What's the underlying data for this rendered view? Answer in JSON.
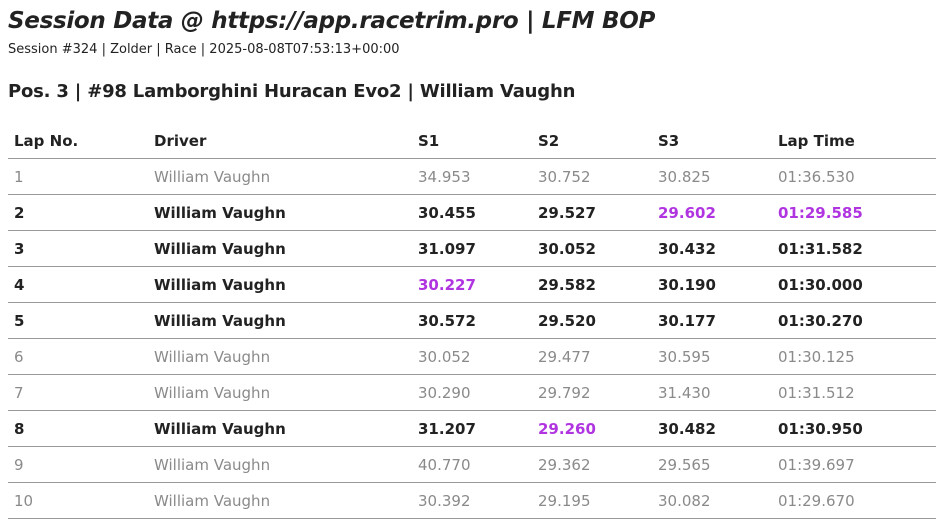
{
  "header": {
    "title": "Session Data @ https://app.racetrim.pro | LFM BOP",
    "subtitle": "Session #324 | Zolder | Race | 2025-08-08T07:53:13+00:00",
    "entry": "Pos. 3 | #98 Lamborghini Huracan Evo2 | William Vaughn"
  },
  "colors": {
    "best": "#b035e0",
    "invalid": "#8a8a8a",
    "valid": "#222222"
  },
  "table": {
    "columns": [
      "Lap No.",
      "Driver",
      "S1",
      "S2",
      "S3",
      "Lap Time"
    ],
    "rows": [
      {
        "lap": "1",
        "driver": "William Vaughn",
        "s1": "34.953",
        "s2": "30.752",
        "s3": "30.825",
        "time": "01:36.530",
        "valid": false,
        "best": []
      },
      {
        "lap": "2",
        "driver": "William Vaughn",
        "s1": "30.455",
        "s2": "29.527",
        "s3": "29.602",
        "time": "01:29.585",
        "valid": true,
        "best": [
          "s3",
          "time"
        ]
      },
      {
        "lap": "3",
        "driver": "William Vaughn",
        "s1": "31.097",
        "s2": "30.052",
        "s3": "30.432",
        "time": "01:31.582",
        "valid": true,
        "best": []
      },
      {
        "lap": "4",
        "driver": "William Vaughn",
        "s1": "30.227",
        "s2": "29.582",
        "s3": "30.190",
        "time": "01:30.000",
        "valid": true,
        "best": [
          "s1"
        ]
      },
      {
        "lap": "5",
        "driver": "William Vaughn",
        "s1": "30.572",
        "s2": "29.520",
        "s3": "30.177",
        "time": "01:30.270",
        "valid": true,
        "best": []
      },
      {
        "lap": "6",
        "driver": "William Vaughn",
        "s1": "30.052",
        "s2": "29.477",
        "s3": "30.595",
        "time": "01:30.125",
        "valid": false,
        "best": []
      },
      {
        "lap": "7",
        "driver": "William Vaughn",
        "s1": "30.290",
        "s2": "29.792",
        "s3": "31.430",
        "time": "01:31.512",
        "valid": false,
        "best": []
      },
      {
        "lap": "8",
        "driver": "William Vaughn",
        "s1": "31.207",
        "s2": "29.260",
        "s3": "30.482",
        "time": "01:30.950",
        "valid": true,
        "best": [
          "s2"
        ]
      },
      {
        "lap": "9",
        "driver": "William Vaughn",
        "s1": "40.770",
        "s2": "29.362",
        "s3": "29.565",
        "time": "01:39.697",
        "valid": false,
        "best": []
      },
      {
        "lap": "10",
        "driver": "William Vaughn",
        "s1": "30.392",
        "s2": "29.195",
        "s3": "30.082",
        "time": "01:29.670",
        "valid": false,
        "best": []
      }
    ]
  }
}
